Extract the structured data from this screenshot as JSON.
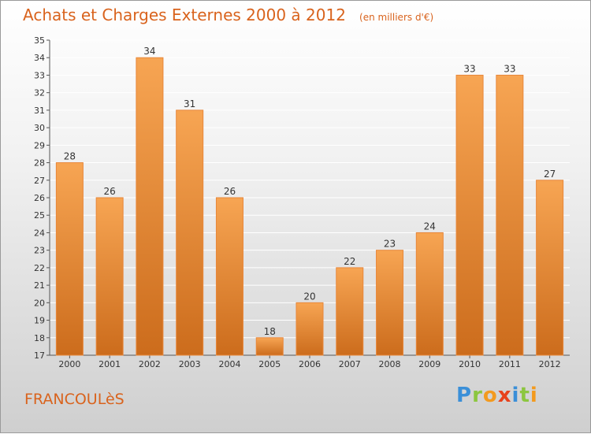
{
  "header": {
    "title": "Achats et Charges Externes 2000 à 2012",
    "unit": "(en milliers d'€)"
  },
  "footer": {
    "commune": "FRANCOULèS",
    "logo": [
      "P",
      "r",
      "o",
      "x",
      "i",
      "t",
      "i"
    ],
    "logo_colors": [
      "#3a8fd8",
      "#8cc63f",
      "#f39a1e",
      "#e8421c",
      "#3a8fd8",
      "#8cc63f",
      "#f39a1e"
    ]
  },
  "colors": {
    "bar_light": "#f7a553",
    "bar_dark": "#cc6c1c",
    "accent": "#d9631d",
    "grid": "#ffffff"
  },
  "chart_data": {
    "type": "bar",
    "title": "Achats et Charges Externes 2000 à 2012",
    "categories": [
      "2000",
      "2001",
      "2002",
      "2003",
      "2004",
      "2005",
      "2006",
      "2007",
      "2008",
      "2009",
      "2010",
      "2011",
      "2012"
    ],
    "values": [
      28,
      26,
      34,
      31,
      26,
      18,
      20,
      22,
      23,
      24,
      33,
      33,
      27
    ],
    "ylim": [
      17,
      35
    ],
    "yticks": [
      17,
      18,
      19,
      20,
      21,
      22,
      23,
      24,
      25,
      26,
      27,
      28,
      29,
      30,
      31,
      32,
      33,
      34,
      35
    ],
    "grid": true,
    "xlabel": "",
    "ylabel": ""
  }
}
